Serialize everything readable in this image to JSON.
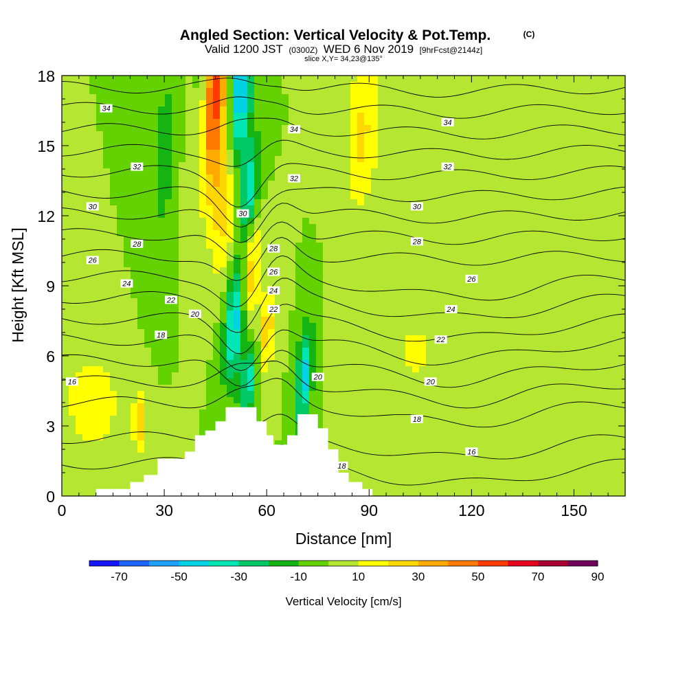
{
  "chart_data": {
    "type": "heatmap",
    "title": "Angled Section: Vertical Velocity & Pot.Temp.",
    "title_unit": "(C)",
    "subtitle_parts": [
      "Valid 1200 JST",
      "(0300Z)",
      "WED 6 Nov 2019",
      "[9hrFcst@2144z]"
    ],
    "slice_text": "slice X,Y= 34,23@135°",
    "xlabel": "Distance [nm]",
    "ylabel": "Height [Kft MSL]",
    "xlim": [
      0,
      165
    ],
    "ylim": [
      0,
      18
    ],
    "x_ticks": [
      "0",
      "30",
      "60",
      "90",
      "120",
      "150"
    ],
    "x_tick_values": [
      0,
      30,
      60,
      90,
      120,
      150
    ],
    "y_ticks": [
      "0",
      "3",
      "6",
      "9",
      "12",
      "15",
      "18"
    ],
    "y_tick_values": [
      0,
      3,
      6,
      9,
      12,
      15,
      18
    ],
    "terrain": [
      [
        0,
        0
      ],
      [
        10,
        0
      ],
      [
        10,
        0.3
      ],
      [
        20,
        0.3
      ],
      [
        20,
        0.6
      ],
      [
        24,
        0.6
      ],
      [
        24,
        0.9
      ],
      [
        28,
        0.9
      ],
      [
        28,
        1.6
      ],
      [
        36,
        1.6
      ],
      [
        36,
        1.9
      ],
      [
        39,
        1.9
      ],
      [
        39,
        2.6
      ],
      [
        42,
        2.6
      ],
      [
        42,
        2.8
      ],
      [
        45,
        2.8
      ],
      [
        45,
        3.2
      ],
      [
        48,
        3.2
      ],
      [
        48,
        3.8
      ],
      [
        57,
        3.8
      ],
      [
        57,
        3.2
      ],
      [
        60,
        3.2
      ],
      [
        60,
        2.6
      ],
      [
        62,
        2.6
      ],
      [
        62,
        2.2
      ],
      [
        66,
        2.2
      ],
      [
        66,
        2.6
      ],
      [
        69,
        2.6
      ],
      [
        69,
        3.5
      ],
      [
        75,
        3.5
      ],
      [
        75,
        2.9
      ],
      [
        78,
        2.9
      ],
      [
        78,
        2.0
      ],
      [
        81,
        2.0
      ],
      [
        81,
        1.0
      ],
      [
        84,
        1.0
      ],
      [
        84,
        0.6
      ],
      [
        88,
        0.6
      ],
      [
        88,
        0.3
      ],
      [
        91,
        0.3
      ],
      [
        91,
        0
      ],
      [
        165,
        0
      ]
    ],
    "velocity_field": {
      "background": 0,
      "features": [
        {
          "x": 44,
          "y": 17.0,
          "sx": 3.0,
          "sy": 2.8,
          "tilt": 0.55,
          "value": 60
        },
        {
          "x": 49,
          "y": 13.5,
          "sx": 3.0,
          "sy": 2.5,
          "tilt": 0.55,
          "value": 40
        },
        {
          "x": 55,
          "y": 9.5,
          "sx": 2.0,
          "sy": 1.8,
          "tilt": 0.55,
          "value": 35
        },
        {
          "x": 60,
          "y": 7.0,
          "sx": 2.0,
          "sy": 1.5,
          "tilt": 0.55,
          "value": 25
        },
        {
          "x": 52,
          "y": 16.8,
          "sx": 2.4,
          "sy": 2.8,
          "tilt": 0.45,
          "value": -65
        },
        {
          "x": 55,
          "y": 13.0,
          "sx": 2.0,
          "sy": 1.6,
          "tilt": 0.45,
          "value": -40
        },
        {
          "x": 51,
          "y": 7.5,
          "sx": 2.2,
          "sy": 1.8,
          "tilt": 0.55,
          "value": -50
        },
        {
          "x": 55,
          "y": 5.0,
          "sx": 1.8,
          "sy": 1.3,
          "tilt": 0.55,
          "value": -35
        },
        {
          "x": 71,
          "y": 5.0,
          "sx": 1.6,
          "sy": 1.6,
          "tilt": 0.45,
          "value": -45
        },
        {
          "x": 41,
          "y": 16.5,
          "sx": 1.8,
          "sy": 2.5,
          "tilt": 0.3,
          "value": -30
        },
        {
          "x": 88,
          "y": 15.5,
          "sx": 3.5,
          "sy": 2.5,
          "tilt": 0.3,
          "value": 22
        },
        {
          "x": 9,
          "y": 4.0,
          "sx": 6.0,
          "sy": 1.5,
          "tilt": 0.0,
          "value": 18
        },
        {
          "x": 30,
          "y": 14.5,
          "sx": 2.5,
          "sy": 3.0,
          "tilt": 0.3,
          "value": -15
        },
        {
          "x": 103,
          "y": 6.0,
          "sx": 8.0,
          "sy": 2.0,
          "tilt": 0.0,
          "value": 10
        },
        {
          "x": 135,
          "y": 8.0,
          "sx": 16.0,
          "sy": 2.0,
          "tilt": 0.0,
          "value": 9
        },
        {
          "x": 23,
          "y": 3.2,
          "sx": 1.5,
          "sy": 1.0,
          "tilt": 0.0,
          "value": 25
        }
      ]
    },
    "theta_levels": [
      16,
      17,
      18,
      19,
      20,
      21,
      22,
      23,
      24,
      25,
      26,
      27,
      28,
      29,
      30,
      31,
      32,
      33,
      34
    ],
    "theta_labels": [
      {
        "text": "34",
        "x": 13,
        "y": 16.6
      },
      {
        "text": "34",
        "x": 68,
        "y": 15.7
      },
      {
        "text": "34",
        "x": 113,
        "y": 16.0
      },
      {
        "text": "32",
        "x": 22,
        "y": 14.1
      },
      {
        "text": "32",
        "x": 68,
        "y": 13.6
      },
      {
        "text": "32",
        "x": 113,
        "y": 14.1
      },
      {
        "text": "30",
        "x": 9,
        "y": 12.4
      },
      {
        "text": "30",
        "x": 53,
        "y": 12.1
      },
      {
        "text": "30",
        "x": 104,
        "y": 12.4
      },
      {
        "text": "28",
        "x": 22,
        "y": 10.8
      },
      {
        "text": "28",
        "x": 62,
        "y": 10.6
      },
      {
        "text": "28",
        "x": 104,
        "y": 10.9
      },
      {
        "text": "26",
        "x": 9,
        "y": 10.1
      },
      {
        "text": "26",
        "x": 62,
        "y": 9.6
      },
      {
        "text": "26",
        "x": 120,
        "y": 9.3
      },
      {
        "text": "24",
        "x": 19,
        "y": 9.1
      },
      {
        "text": "24",
        "x": 62,
        "y": 8.8
      },
      {
        "text": "24",
        "x": 114,
        "y": 8.0
      },
      {
        "text": "22",
        "x": 32,
        "y": 8.4
      },
      {
        "text": "22",
        "x": 62,
        "y": 8.0
      },
      {
        "text": "22",
        "x": 111,
        "y": 6.7
      },
      {
        "text": "20",
        "x": 39,
        "y": 7.8
      },
      {
        "text": "20",
        "x": 75,
        "y": 5.1
      },
      {
        "text": "20",
        "x": 108,
        "y": 4.9
      },
      {
        "text": "18",
        "x": 29,
        "y": 6.9
      },
      {
        "text": "18",
        "x": 104,
        "y": 3.3
      },
      {
        "text": "18",
        "x": 82,
        "y": 1.3
      },
      {
        "text": "16",
        "x": 3,
        "y": 4.9
      },
      {
        "text": "16",
        "x": 120,
        "y": 1.9
      }
    ],
    "colorbar": {
      "label": "Vertical Velocity [cm/s]",
      "tick_labels": [
        "-70",
        "-50",
        "-30",
        "-10",
        "10",
        "30",
        "50",
        "70",
        "90"
      ],
      "bounds": [
        -80,
        -70,
        -60,
        -50,
        -40,
        -30,
        -20,
        -10,
        0,
        10,
        20,
        30,
        40,
        50,
        60,
        70,
        80,
        90
      ],
      "colors": [
        "#1414ff",
        "#1e64ff",
        "#1ea0ff",
        "#00d2e6",
        "#00e6b4",
        "#00c864",
        "#14b414",
        "#64d200",
        "#b4e632",
        "#ffff00",
        "#ffd700",
        "#ffaa00",
        "#ff7800",
        "#ff3c00",
        "#e6001e",
        "#aa0032",
        "#6e005a"
      ]
    }
  }
}
